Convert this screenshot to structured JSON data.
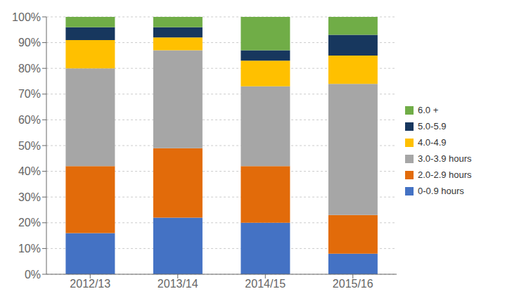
{
  "chart_data": {
    "type": "bar",
    "stacked": true,
    "categories": [
      "2012/13",
      "2013/14",
      "2014/15",
      "2015/16"
    ],
    "series": [
      {
        "name": "0-0.9 hours",
        "color": "#4472C4",
        "values": [
          16,
          22,
          20,
          8
        ]
      },
      {
        "name": "2.0-2.9 hours",
        "color": "#E26B0A",
        "values": [
          26,
          27,
          22,
          15
        ]
      },
      {
        "name": "3.0-3.9 hours",
        "color": "#A6A6A6",
        "values": [
          38,
          38,
          31,
          51
        ]
      },
      {
        "name": "4.0-4.9",
        "color": "#FFC000",
        "values": [
          11,
          5,
          10,
          11
        ]
      },
      {
        "name": "5.0-5.9",
        "color": "#17375E",
        "values": [
          5,
          4,
          4,
          8
        ]
      },
      {
        "name": "6.0 +",
        "color": "#70AD47",
        "values": [
          4,
          4,
          13,
          7
        ]
      }
    ],
    "ylim": [
      0,
      100
    ],
    "yticks": [
      {
        "value": 0,
        "label": "0%"
      },
      {
        "value": 10,
        "label": "10%"
      },
      {
        "value": 20,
        "label": "20%"
      },
      {
        "value": 30,
        "label": "30%"
      },
      {
        "value": 40,
        "label": "40%"
      },
      {
        "value": 50,
        "label": "50%"
      },
      {
        "value": 60,
        "label": "60%"
      },
      {
        "value": 70,
        "label": "70%"
      },
      {
        "value": 80,
        "label": "80%"
      },
      {
        "value": 90,
        "label": "90%"
      },
      {
        "value": 100,
        "label": "100%"
      }
    ],
    "grid": true,
    "legend": "right"
  }
}
